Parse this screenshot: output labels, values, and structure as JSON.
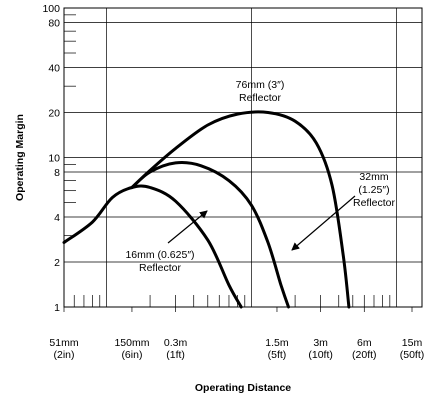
{
  "chart_data": {
    "type": "line",
    "title": "",
    "xlabel": "Operating Distance",
    "ylabel": "Operating Margin",
    "x_scale": "log",
    "y_scale": "log",
    "xlim": [
      0.051,
      15
    ],
    "ylim": [
      1,
      100
    ],
    "grid": true,
    "y_tick_labels": [
      "100",
      "80",
      "40",
      "20",
      "10",
      "8",
      "4",
      "2",
      "1"
    ],
    "x_tick_labels": [
      [
        "51mm",
        "(2in)"
      ],
      [
        "150mm",
        "(6in)"
      ],
      [
        "0.3m",
        "(1ft)"
      ],
      [
        "1.5m",
        "(5ft)"
      ],
      [
        "3m",
        "(10ft)"
      ],
      [
        "6m",
        "(20ft)"
      ],
      [
        "15m",
        "(50ft)"
      ]
    ],
    "series": [
      {
        "name": "16mm (0.625″) Reflector",
        "x": [
          0.051,
          0.08,
          0.11,
          0.15,
          0.2,
          0.3,
          0.5,
          0.7,
          0.85
        ],
        "y": [
          2.7,
          3.7,
          5.4,
          6.3,
          6.3,
          5.1,
          2.8,
          1.4,
          1.0
        ]
      },
      {
        "name": "32mm (1.25″) Reflector",
        "x": [
          0.15,
          0.2,
          0.3,
          0.45,
          0.7,
          1.0,
          1.3,
          1.6,
          1.8
        ],
        "y": [
          6.3,
          8.0,
          9.2,
          8.8,
          7.0,
          4.8,
          2.7,
          1.4,
          1.0
        ]
      },
      {
        "name": "76mm (3″) Reflector",
        "x": [
          0.15,
          0.2,
          0.3,
          0.5,
          0.8,
          1.3,
          2.0,
          2.8,
          3.6,
          4.3,
          4.7
        ],
        "y": [
          6.3,
          8.2,
          11.5,
          16.5,
          19.5,
          20.0,
          17.5,
          12.5,
          6.5,
          2.2,
          1.0
        ]
      }
    ],
    "annotations": [
      {
        "lines": [
          "76mm (3″)",
          "Reflector"
        ]
      },
      {
        "lines": [
          "32mm",
          "(1.25″)",
          "Reflector"
        ]
      },
      {
        "lines": [
          "16mm (0.625″)",
          "Reflector"
        ]
      }
    ]
  }
}
